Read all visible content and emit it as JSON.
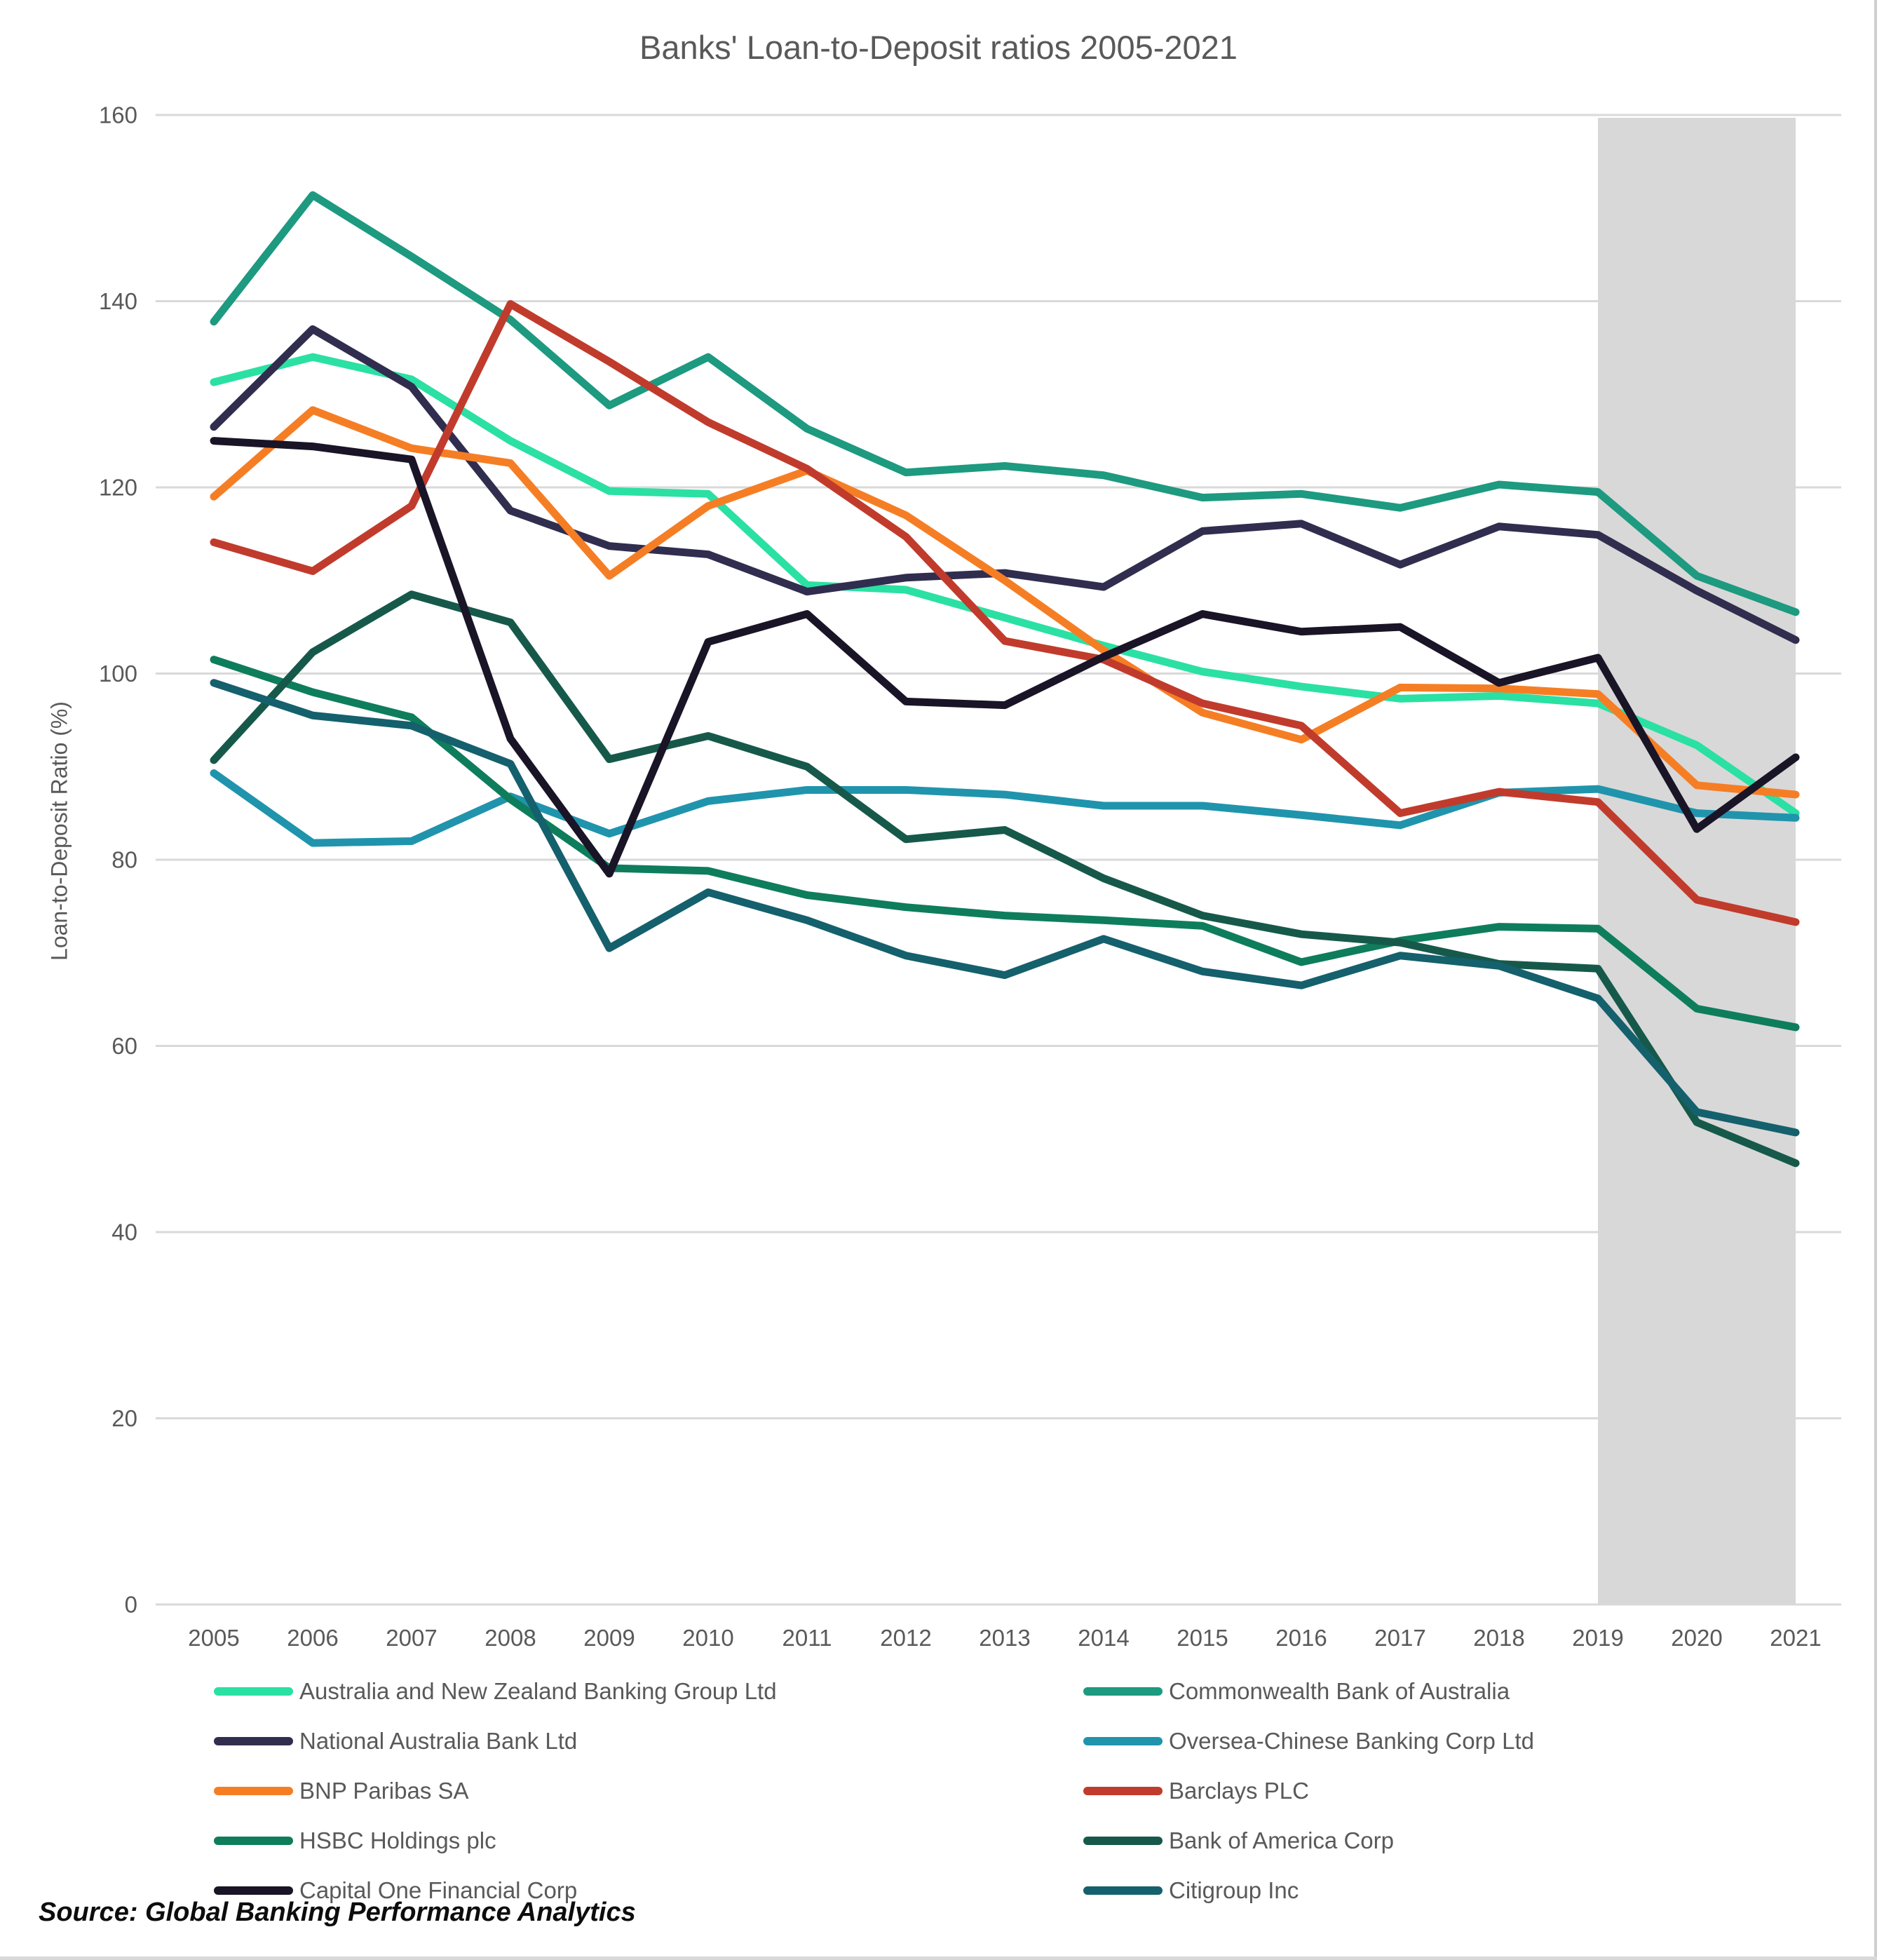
{
  "chart_data": {
    "type": "line",
    "title": "Banks' Loan-to-Deposit ratios 2005-2021",
    "ylabel": "Loan-to-Deposit Ratio (%)",
    "xlabel": "",
    "ylim": [
      0,
      160
    ],
    "yticks": [
      0,
      20,
      40,
      60,
      80,
      100,
      120,
      140,
      160
    ],
    "grid": true,
    "legend_position": "bottom-two-columns",
    "x": [
      2005,
      2006,
      2007,
      2008,
      2009,
      2010,
      2011,
      2012,
      2013,
      2014,
      2015,
      2016,
      2017,
      2018,
      2019,
      2020,
      2021
    ],
    "shaded_region": {
      "x_start": 2019,
      "x_end": 2021,
      "color": "#d8d8d8"
    },
    "series": [
      {
        "name": "Australia and New Zealand Banking Group Ltd",
        "color": "#2be0a3",
        "values": [
          131.3,
          134,
          131.6,
          125,
          119.6,
          119.3,
          109.5,
          109,
          106,
          103,
          100.2,
          98.6,
          97.3,
          97.6,
          96.8,
          92.3,
          85
        ]
      },
      {
        "name": "Commonwealth Bank of Australia",
        "color": "#1d9a7f",
        "values": [
          137.8,
          151.4,
          144.8,
          138,
          128.8,
          134,
          126.3,
          121.6,
          122.3,
          121.3,
          118.9,
          119.3,
          117.8,
          120.3,
          119.5,
          110.5,
          106.6
        ]
      },
      {
        "name": "National Australia Bank Ltd",
        "color": "#312d4f",
        "values": [
          126.5,
          137,
          130.8,
          117.5,
          113.7,
          112.8,
          108.8,
          110.3,
          110.8,
          109.3,
          115.3,
          116.1,
          111.7,
          115.8,
          114.9,
          108.9,
          103.6
        ]
      },
      {
        "name": "Oversea-Chinese Banking Corp Ltd",
        "color": "#2094ac",
        "values": [
          89.3,
          81.8,
          82,
          86.8,
          82.8,
          86.3,
          87.5,
          87.5,
          87,
          85.8,
          85.8,
          84.8,
          83.7,
          87.2,
          87.6,
          85,
          84.5
        ]
      },
      {
        "name": "BNP Paribas SA",
        "color": "#f57e25",
        "values": [
          119,
          128.3,
          124.2,
          122.6,
          110.5,
          118,
          121.8,
          117,
          110,
          102.5,
          95.8,
          92.9,
          98.5,
          98.4,
          97.8,
          88,
          87
        ]
      },
      {
        "name": "Barclays PLC",
        "color": "#c13b2c",
        "values": [
          114.1,
          111,
          118,
          139.7,
          133.5,
          127,
          122,
          114.7,
          103.5,
          101.5,
          96.8,
          94.4,
          85,
          87.3,
          86.2,
          75.7,
          73.3
        ]
      },
      {
        "name": "HSBC Holdings plc",
        "color": "#0e7d5c",
        "values": [
          101.5,
          98,
          95.3,
          86.5,
          79.1,
          78.8,
          76.2,
          74.9,
          74,
          73.5,
          72.9,
          69,
          71.3,
          72.8,
          72.6,
          64,
          62
        ]
      },
      {
        "name": "Bank of America Corp",
        "color": "#16594a",
        "values": [
          90.7,
          102.3,
          108.5,
          105.5,
          90.8,
          93.3,
          90,
          82.2,
          83.2,
          78,
          74,
          72,
          71.1,
          68.8,
          68.3,
          51.8,
          47.4
        ]
      },
      {
        "name": "Capital One Financial Corp",
        "color": "#1a1427",
        "values": [
          125,
          124.4,
          123,
          93,
          78.5,
          103.4,
          106.4,
          97,
          96.6,
          101.8,
          106.4,
          104.5,
          105,
          99,
          101.7,
          83.3,
          91
        ]
      },
      {
        "name": "Citigroup Inc",
        "color": "#15606d",
        "values": [
          99,
          95.5,
          94.4,
          90.3,
          70.5,
          76.5,
          73.5,
          69.7,
          67.6,
          71.5,
          68,
          66.5,
          69.7,
          68.6,
          65.1,
          52.9,
          50.7
        ]
      }
    ]
  },
  "source_note": "Source: Global Banking Performance Analytics"
}
